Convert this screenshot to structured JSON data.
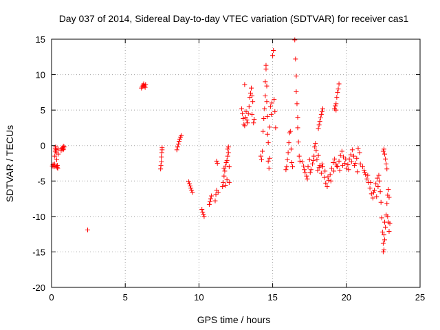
{
  "chart_data": {
    "type": "scatter",
    "title": "Day 037 of 2014, Sidereal Day-to-day VTEC variation (SDTVAR) for receiver cas1",
    "xlabel": "GPS time / hours",
    "ylabel": "SDTVAR / TECUs",
    "xlim": [
      0,
      25
    ],
    "ylim": [
      -20,
      15
    ],
    "xticks": [
      0,
      5,
      10,
      15,
      20,
      25
    ],
    "yticks": [
      -20,
      -15,
      -10,
      -5,
      0,
      5,
      10,
      15
    ],
    "xtick_labels": [
      "0",
      "5",
      "10",
      "15",
      "20",
      "25"
    ],
    "ytick_labels": [
      "-20",
      "-15",
      "-10",
      "-5",
      "0",
      "5",
      "10",
      "15"
    ],
    "grid": true,
    "marker": "+",
    "color": "#ff0000",
    "series": [
      {
        "name": "SDTVAR",
        "points": [
          [
            0.05,
            -2.9
          ],
          [
            0.1,
            -2.7
          ],
          [
            0.15,
            -2.9
          ],
          [
            0.18,
            -3.0
          ],
          [
            0.2,
            -2.6
          ],
          [
            0.22,
            -1.5
          ],
          [
            0.25,
            -0.8
          ],
          [
            0.25,
            -0.4
          ],
          [
            0.28,
            -0.2
          ],
          [
            0.3,
            -0.6
          ],
          [
            0.32,
            -1.0
          ],
          [
            0.35,
            -2.0
          ],
          [
            0.35,
            -2.9
          ],
          [
            0.38,
            -3.1
          ],
          [
            0.4,
            -2.8
          ],
          [
            0.42,
            -3.2
          ],
          [
            0.45,
            -0.5
          ],
          [
            0.45,
            -1.2
          ],
          [
            0.65,
            -0.7
          ],
          [
            0.7,
            -0.4
          ],
          [
            0.75,
            -0.3
          ],
          [
            0.78,
            -0.6
          ],
          [
            0.8,
            -0.1
          ],
          [
            0.82,
            -0.5
          ],
          [
            0.85,
            -0.2
          ],
          [
            2.45,
            -11.9
          ],
          [
            6.1,
            8.1
          ],
          [
            6.15,
            8.3
          ],
          [
            6.2,
            8.5
          ],
          [
            6.25,
            8.7
          ],
          [
            6.3,
            8.4
          ],
          [
            6.35,
            8.2
          ],
          [
            6.38,
            8.6
          ],
          [
            7.4,
            -3.3
          ],
          [
            7.42,
            -2.8
          ],
          [
            7.45,
            -2.3
          ],
          [
            7.45,
            -1.6
          ],
          [
            7.48,
            -1.0
          ],
          [
            7.5,
            -0.6
          ],
          [
            7.5,
            -0.3
          ],
          [
            8.5,
            -0.6
          ],
          [
            8.55,
            -0.2
          ],
          [
            8.6,
            0.2
          ],
          [
            8.65,
            0.6
          ],
          [
            8.7,
            0.9
          ],
          [
            8.75,
            1.2
          ],
          [
            8.8,
            1.4
          ],
          [
            9.3,
            -5.1
          ],
          [
            9.35,
            -5.4
          ],
          [
            9.4,
            -5.7
          ],
          [
            9.45,
            -6.0
          ],
          [
            9.5,
            -6.3
          ],
          [
            9.55,
            -6.6
          ],
          [
            10.2,
            -9.0
          ],
          [
            10.25,
            -9.4
          ],
          [
            10.3,
            -9.7
          ],
          [
            10.35,
            -10.0
          ],
          [
            10.7,
            -8.3
          ],
          [
            10.75,
            -7.9
          ],
          [
            10.8,
            -7.5
          ],
          [
            10.85,
            -7.1
          ],
          [
            11.1,
            -7.8
          ],
          [
            11.15,
            -6.9
          ],
          [
            11.2,
            -6.3
          ],
          [
            11.2,
            -2.2
          ],
          [
            11.25,
            -2.5
          ],
          [
            11.3,
            -6.6
          ],
          [
            11.6,
            -5.8
          ],
          [
            11.65,
            -5.2
          ],
          [
            11.7,
            -4.3
          ],
          [
            11.7,
            -3.2
          ],
          [
            11.75,
            -3.6
          ],
          [
            11.8,
            -2.9
          ],
          [
            11.85,
            -2.4
          ],
          [
            11.9,
            -2.1
          ],
          [
            11.95,
            -1.5
          ],
          [
            11.95,
            -0.5
          ],
          [
            12.0,
            -0.2
          ],
          [
            12.0,
            -1.0
          ],
          [
            12.05,
            -3.0
          ],
          [
            12.05,
            -5.2
          ],
          [
            11.8,
            -5.6
          ],
          [
            11.9,
            -4.8
          ],
          [
            12.9,
            5.2
          ],
          [
            12.95,
            4.5
          ],
          [
            13.0,
            3.8
          ],
          [
            13.05,
            3.0
          ],
          [
            13.1,
            8.6
          ],
          [
            13.1,
            2.8
          ],
          [
            13.15,
            4.0
          ],
          [
            13.2,
            4.8
          ],
          [
            13.25,
            3.6
          ],
          [
            13.3,
            3.2
          ],
          [
            13.35,
            4.5
          ],
          [
            13.4,
            5.5
          ],
          [
            13.45,
            6.8
          ],
          [
            13.5,
            7.4
          ],
          [
            13.55,
            8.1
          ],
          [
            13.6,
            7.0
          ],
          [
            13.6,
            4.4
          ],
          [
            13.65,
            6.2
          ],
          [
            13.7,
            3.2
          ],
          [
            13.75,
            3.7
          ],
          [
            14.2,
            -1.5
          ],
          [
            14.25,
            -2.0
          ],
          [
            14.3,
            -0.8
          ],
          [
            14.35,
            2.0
          ],
          [
            14.4,
            3.8
          ],
          [
            14.45,
            5.2
          ],
          [
            14.5,
            7.0
          ],
          [
            14.5,
            9.0
          ],
          [
            14.55,
            10.8
          ],
          [
            14.55,
            11.3
          ],
          [
            14.6,
            8.4
          ],
          [
            14.6,
            6.2
          ],
          [
            14.65,
            4.1
          ],
          [
            14.65,
            1.6
          ],
          [
            14.7,
            0.4
          ],
          [
            14.7,
            -2.2
          ],
          [
            14.75,
            -3.2
          ],
          [
            14.8,
            -1.8
          ],
          [
            14.8,
            2.6
          ],
          [
            14.85,
            5.5
          ],
          [
            14.9,
            4.4
          ],
          [
            14.95,
            6.0
          ],
          [
            15.0,
            12.7
          ],
          [
            15.05,
            13.4
          ],
          [
            15.1,
            6.5
          ],
          [
            15.15,
            4.8
          ],
          [
            15.2,
            2.5
          ],
          [
            15.9,
            -3.4
          ],
          [
            15.95,
            -3.0
          ],
          [
            16.0,
            -2.0
          ],
          [
            16.05,
            -1.0
          ],
          [
            16.1,
            0.4
          ],
          [
            16.15,
            1.8
          ],
          [
            16.2,
            2.0
          ],
          [
            16.25,
            -0.5
          ],
          [
            16.3,
            -2.4
          ],
          [
            16.35,
            -3.0
          ],
          [
            16.5,
            14.9
          ],
          [
            16.55,
            12.2
          ],
          [
            16.6,
            9.8
          ],
          [
            16.6,
            7.6
          ],
          [
            16.65,
            5.9
          ],
          [
            16.7,
            4.0
          ],
          [
            16.7,
            2.5
          ],
          [
            16.75,
            0.5
          ],
          [
            16.8,
            -1.5
          ],
          [
            16.85,
            -2.2
          ],
          [
            17.0,
            -2.3
          ],
          [
            17.1,
            -2.9
          ],
          [
            17.2,
            -3.8
          ],
          [
            17.3,
            -4.3
          ],
          [
            17.4,
            -3.0
          ],
          [
            17.5,
            -2.0
          ],
          [
            17.6,
            -3.4
          ],
          [
            17.7,
            -2.6
          ],
          [
            17.8,
            -1.5
          ],
          [
            17.85,
            -0.2
          ],
          [
            17.9,
            0.3
          ],
          [
            17.95,
            -0.7
          ],
          [
            18.0,
            -2.0
          ],
          [
            18.05,
            -3.5
          ],
          [
            18.1,
            -1.4
          ],
          [
            18.2,
            -2.8
          ],
          [
            18.3,
            -3.9
          ],
          [
            18.4,
            -3.0
          ],
          [
            18.5,
            -4.5
          ],
          [
            18.6,
            -5.3
          ],
          [
            18.7,
            -5.8
          ],
          [
            18.8,
            -4.9
          ],
          [
            18.9,
            -4.1
          ],
          [
            19.0,
            -3.2
          ],
          [
            19.1,
            -2.4
          ],
          [
            19.2,
            -1.9
          ],
          [
            19.3,
            -2.6
          ],
          [
            19.4,
            -3.0
          ],
          [
            19.5,
            -2.2
          ],
          [
            19.6,
            -1.4
          ],
          [
            19.7,
            -0.8
          ],
          [
            19.8,
            -1.6
          ],
          [
            19.9,
            -2.5
          ],
          [
            20.0,
            -3.2
          ],
          [
            20.1,
            -2.7
          ],
          [
            20.2,
            -1.9
          ],
          [
            20.3,
            -1.3
          ],
          [
            20.4,
            -0.6
          ],
          [
            20.5,
            -1.5
          ],
          [
            20.6,
            -2.5
          ],
          [
            20.7,
            -1.8
          ],
          [
            20.8,
            -0.4
          ],
          [
            20.9,
            -1.0
          ],
          [
            17.15,
            -3.4
          ],
          [
            17.35,
            -4.7
          ],
          [
            17.55,
            -3.8
          ],
          [
            17.75,
            -2.1
          ],
          [
            18.15,
            -3.1
          ],
          [
            18.35,
            -2.6
          ],
          [
            18.55,
            -3.6
          ],
          [
            18.75,
            -4.4
          ],
          [
            18.95,
            -5.0
          ],
          [
            19.15,
            -3.6
          ],
          [
            19.35,
            -2.9
          ],
          [
            19.55,
            -3.5
          ],
          [
            19.75,
            -2.8
          ],
          [
            19.95,
            -1.9
          ],
          [
            20.15,
            -3.4
          ],
          [
            20.35,
            -2.3
          ],
          [
            20.55,
            -2.8
          ],
          [
            20.75,
            -3.7
          ],
          [
            20.95,
            -2.6
          ],
          [
            18.1,
            2.4
          ],
          [
            18.15,
            2.9
          ],
          [
            18.2,
            3.4
          ],
          [
            18.25,
            3.9
          ],
          [
            18.3,
            4.4
          ],
          [
            18.35,
            4.8
          ],
          [
            18.4,
            5.2
          ],
          [
            19.2,
            5.2
          ],
          [
            19.25,
            5.6
          ],
          [
            19.3,
            5.9
          ],
          [
            19.35,
            6.8
          ],
          [
            19.4,
            7.5
          ],
          [
            19.45,
            8.0
          ],
          [
            19.5,
            8.7
          ],
          [
            19.3,
            5.0
          ],
          [
            21.1,
            -3.0
          ],
          [
            21.2,
            -3.5
          ],
          [
            21.3,
            -4.1
          ],
          [
            21.4,
            -4.7
          ],
          [
            21.5,
            -5.2
          ],
          [
            21.6,
            -6.0
          ],
          [
            21.7,
            -6.8
          ],
          [
            21.8,
            -7.4
          ],
          [
            21.9,
            -6.3
          ],
          [
            22.0,
            -5.4
          ],
          [
            22.1,
            -4.6
          ],
          [
            22.2,
            -4.2
          ],
          [
            22.25,
            -5.0
          ],
          [
            22.3,
            -6.5
          ],
          [
            22.35,
            -8.0
          ],
          [
            22.4,
            -10.2
          ],
          [
            22.45,
            -12.2
          ],
          [
            22.5,
            -13.8
          ],
          [
            22.55,
            -14.7
          ],
          [
            22.6,
            -13.3
          ],
          [
            22.65,
            -11.5
          ],
          [
            22.7,
            -9.8
          ],
          [
            22.75,
            -8.2
          ],
          [
            22.8,
            -7.0
          ],
          [
            22.85,
            -6.2
          ],
          [
            22.9,
            -7.3
          ],
          [
            21.25,
            -3.8
          ],
          [
            21.45,
            -4.2
          ],
          [
            21.65,
            -5.2
          ],
          [
            21.85,
            -6.6
          ],
          [
            22.05,
            -7.2
          ],
          [
            22.15,
            -5.8
          ],
          [
            22.5,
            -15.0
          ],
          [
            22.55,
            -12.6
          ],
          [
            22.6,
            -10.8
          ],
          [
            22.5,
            -0.8
          ],
          [
            22.55,
            -0.5
          ],
          [
            22.6,
            -1.2
          ],
          [
            22.65,
            -1.9
          ],
          [
            22.7,
            -2.6
          ],
          [
            22.75,
            -3.3
          ],
          [
            22.8,
            -10.0
          ],
          [
            22.85,
            -10.8
          ],
          [
            22.9,
            -12.1
          ],
          [
            22.95,
            -11.0
          ]
        ]
      }
    ]
  }
}
